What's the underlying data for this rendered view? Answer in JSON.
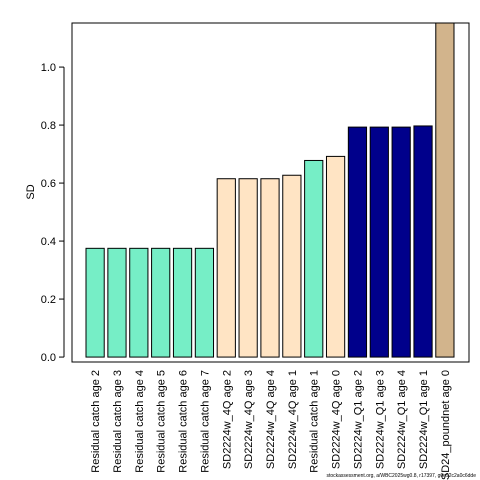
{
  "chart_data": {
    "type": "bar",
    "y_label": "SD",
    "footer": "stockassessment.org, a/WBC2025wg0.8, r17397, g6e92c2a0c6dde",
    "categories": [
      "Residual catch age 2",
      "Residual catch age 3",
      "Residual catch age 4",
      "Residual catch age 5",
      "Residual catch age 6",
      "Residual catch age 7",
      "SD2224w_4Q age 2",
      "SD2224w_4Q age 3",
      "SD2224w_4Q age 4",
      "SD2224w_4Q age 1",
      "Residual catch age 1",
      "SD2224w_4Q age 0",
      "SD2224w_Q1 age 2",
      "SD2224w_Q1 age 3",
      "SD2224w_Q1 age 4",
      "SD2224w_Q1 age 1",
      "SD24_poundnet age 0"
    ],
    "values": [
      0.375,
      0.375,
      0.375,
      0.375,
      0.375,
      0.375,
      0.615,
      0.615,
      0.615,
      0.627,
      0.678,
      0.692,
      0.793,
      0.793,
      0.793,
      0.797,
      1.152
    ],
    "colors": [
      "#76eec6",
      "#76eec6",
      "#76eec6",
      "#76eec6",
      "#76eec6",
      "#76eec6",
      "#ffe4c4",
      "#ffe4c4",
      "#ffe4c4",
      "#ffe4c4",
      "#76eec6",
      "#ffe4c4",
      "#00008b",
      "#00008b",
      "#00008b",
      "#00008b",
      "#d2b48c"
    ],
    "ylim": [
      -0.017,
      1.152
    ],
    "yticks": [
      {
        "value": 0,
        "label": "0.0"
      },
      {
        "value": 0.2,
        "label": "0.2"
      },
      {
        "value": 0.4,
        "label": "0.4"
      },
      {
        "value": 0.6,
        "label": "0.6"
      },
      {
        "value": 0.8,
        "label": "0.8"
      },
      {
        "value": 1.0,
        "label": "1.0"
      }
    ]
  }
}
